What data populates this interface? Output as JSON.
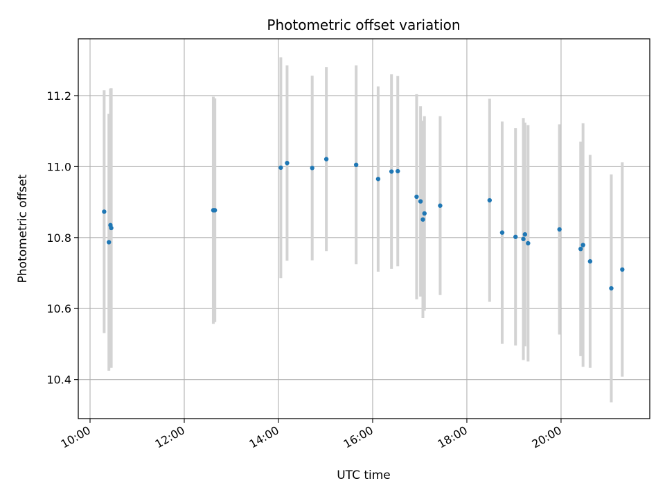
{
  "chart_data": {
    "type": "scatter",
    "title": "Photometric offset variation",
    "xlabel": "UTC time",
    "ylabel": "Photometric offset",
    "x_ticks": [
      "10:00",
      "12:00",
      "14:00",
      "16:00",
      "18:00",
      "20:00"
    ],
    "y_ticks": [
      "10.4",
      "10.6",
      "10.8",
      "11.0",
      "11.2"
    ],
    "xlim": [
      "09:45",
      "21:53"
    ],
    "ylim": [
      10.29,
      11.36
    ],
    "grid": true,
    "legend": "none",
    "colors": {
      "point": "#1f77b4",
      "errorbar": "#d3d3d3",
      "grid": "#b0b0b0"
    },
    "points": [
      {
        "x": "10:18",
        "y": 10.873,
        "yerr": 0.342
      },
      {
        "x": "10:24",
        "y": 10.787,
        "yerr": 0.362
      },
      {
        "x": "10:26",
        "y": 10.835,
        "yerr": 0.385
      },
      {
        "x": "10:27",
        "y": 10.827,
        "yerr": 0.394
      },
      {
        "x": "12:37",
        "y": 10.877,
        "yerr": 0.32
      },
      {
        "x": "12:39",
        "y": 10.877,
        "yerr": 0.315
      },
      {
        "x": "14:03",
        "y": 10.997,
        "yerr": 0.311
      },
      {
        "x": "14:11",
        "y": 11.01,
        "yerr": 0.275
      },
      {
        "x": "14:43",
        "y": 10.996,
        "yerr": 0.26
      },
      {
        "x": "15:01",
        "y": 11.021,
        "yerr": 0.259
      },
      {
        "x": "15:39",
        "y": 11.005,
        "yerr": 0.28
      },
      {
        "x": "16:07",
        "y": 10.965,
        "yerr": 0.261
      },
      {
        "x": "16:24",
        "y": 10.986,
        "yerr": 0.274
      },
      {
        "x": "16:32",
        "y": 10.987,
        "yerr": 0.268
      },
      {
        "x": "16:56",
        "y": 10.915,
        "yerr": 0.289
      },
      {
        "x": "17:01",
        "y": 10.902,
        "yerr": 0.268
      },
      {
        "x": "17:04",
        "y": 10.851,
        "yerr": 0.278
      },
      {
        "x": "17:06",
        "y": 10.868,
        "yerr": 0.274
      },
      {
        "x": "17:26",
        "y": 10.89,
        "yerr": 0.252
      },
      {
        "x": "18:29",
        "y": 10.905,
        "yerr": 0.286
      },
      {
        "x": "18:45",
        "y": 10.814,
        "yerr": 0.313
      },
      {
        "x": "19:02",
        "y": 10.802,
        "yerr": 0.306
      },
      {
        "x": "19:12",
        "y": 10.796,
        "yerr": 0.341
      },
      {
        "x": "19:14",
        "y": 10.809,
        "yerr": 0.315
      },
      {
        "x": "19:18",
        "y": 10.784,
        "yerr": 0.333
      },
      {
        "x": "19:58",
        "y": 10.823,
        "yerr": 0.296
      },
      {
        "x": "20:25",
        "y": 10.768,
        "yerr": 0.302
      },
      {
        "x": "20:28",
        "y": 10.779,
        "yerr": 0.343
      },
      {
        "x": "20:37",
        "y": 10.733,
        "yerr": 0.3
      },
      {
        "x": "21:04",
        "y": 10.657,
        "yerr": 0.321
      },
      {
        "x": "21:18",
        "y": 10.71,
        "yerr": 0.302
      }
    ]
  }
}
